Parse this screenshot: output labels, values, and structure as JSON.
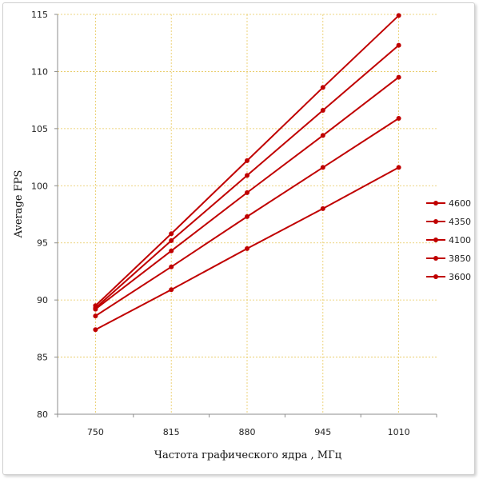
{
  "chart_data": {
    "type": "line",
    "title": "",
    "xlabel": "Частота графического ядра , МГц",
    "ylabel": "Average FPS",
    "categories": [
      "750",
      "815",
      "880",
      "945",
      "1010"
    ],
    "ylim": [
      80,
      115
    ],
    "yticks": [
      80,
      85,
      90,
      95,
      100,
      105,
      110,
      115
    ],
    "grid": true,
    "legend_position": "right",
    "series_color": "#c00000",
    "series": [
      {
        "name": "4600",
        "values": [
          89.5,
          95.8,
          102.2,
          108.6,
          114.9
        ]
      },
      {
        "name": "4350",
        "values": [
          89.3,
          95.2,
          100.9,
          106.6,
          112.3
        ]
      },
      {
        "name": "4100",
        "values": [
          89.2,
          94.3,
          99.4,
          104.4,
          109.5
        ]
      },
      {
        "name": "3850",
        "values": [
          88.6,
          92.9,
          97.3,
          101.6,
          105.9
        ]
      },
      {
        "name": "3600",
        "values": [
          87.4,
          90.9,
          94.5,
          98.0,
          101.6
        ]
      }
    ]
  }
}
